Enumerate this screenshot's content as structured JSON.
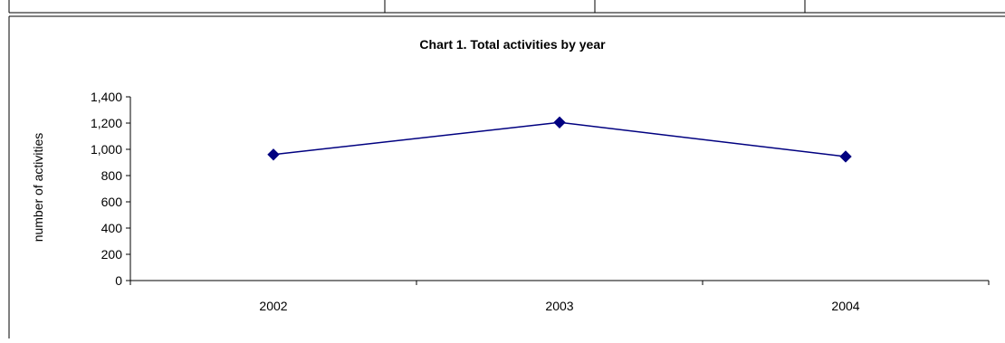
{
  "colors": {
    "series": "#000080",
    "frame": "#000000",
    "background": "#ffffff"
  },
  "chart_data": {
    "type": "line",
    "title": "Chart 1. Total activities by year",
    "xlabel": "",
    "ylabel": "number of activities",
    "categories": [
      "2002",
      "2003",
      "2004"
    ],
    "series": [
      {
        "values": [
          960,
          1205,
          945
        ],
        "marker": "diamond"
      }
    ],
    "ylim": [
      0,
      1400
    ],
    "yticks": [
      "0",
      "200",
      "400",
      "600",
      "800",
      "1,000",
      "1,200",
      "1,400"
    ],
    "grid": false,
    "legend": "none"
  }
}
